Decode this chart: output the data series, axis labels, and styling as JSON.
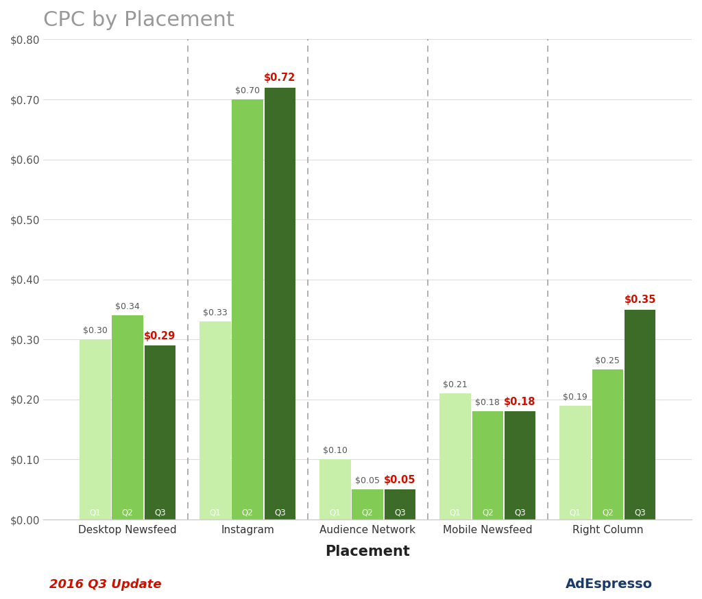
{
  "title": "CPC by Placement",
  "xlabel": "Placement",
  "ylim": [
    0,
    0.8
  ],
  "yticks": [
    0.0,
    0.1,
    0.2,
    0.3,
    0.4,
    0.5,
    0.6,
    0.7,
    0.8
  ],
  "placements": [
    "Desktop Newsfeed",
    "Instagram",
    "Audience Network",
    "Mobile Newsfeed",
    "Right Column"
  ],
  "quarters": [
    "Q1",
    "Q2",
    "Q3"
  ],
  "values": [
    [
      0.3,
      0.34,
      0.29
    ],
    [
      0.33,
      0.7,
      0.72
    ],
    [
      0.1,
      0.05,
      0.05
    ],
    [
      0.21,
      0.18,
      0.18
    ],
    [
      0.19,
      0.25,
      0.35
    ]
  ],
  "bar_colors": [
    "#c8efaa",
    "#82cc55",
    "#3d6b28"
  ],
  "q3_label_color": "#cc1100",
  "normal_label_color": "#555555",
  "title_color": "#999999",
  "xlabel_color": "#222222",
  "background_color": "#ffffff",
  "grid_color": "#dddddd",
  "bar_label_fontsize": 9,
  "title_fontsize": 22,
  "xlabel_fontsize": 15,
  "ytick_fontsize": 11,
  "xtick_fontsize": 11,
  "quarter_label_fontsize": 8.5,
  "footer_left_text": "2016 Q3 Update",
  "footer_left_color": "#cc1100",
  "dashed_line_color": "#aaaaaa",
  "adespresso_color": "#1a3a6b"
}
